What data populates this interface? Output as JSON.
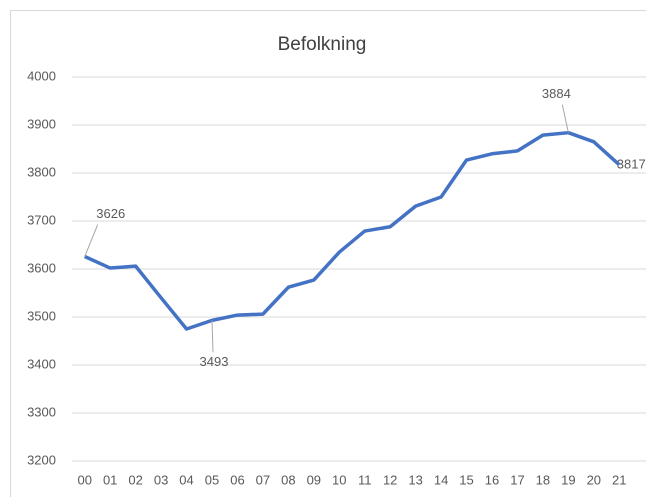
{
  "chart_data": {
    "type": "line",
    "title": "Befolkning",
    "categories": [
      "00",
      "01",
      "02",
      "03",
      "04",
      "05",
      "06",
      "07",
      "08",
      "09",
      "10",
      "11",
      "12",
      "13",
      "14",
      "15",
      "16",
      "17",
      "18",
      "19",
      "20",
      "21"
    ],
    "series": [
      {
        "name": "Befolkning",
        "color": "#4472c4",
        "values": [
          3626,
          3602,
          3606,
          3540,
          3475,
          3493,
          3504,
          3506,
          3562,
          3577,
          3635,
          3679,
          3688,
          3731,
          3750,
          3827,
          3840,
          3846,
          3879,
          3884,
          3865,
          3817
        ],
        "value_labels": [
          "3626",
          null,
          null,
          null,
          null,
          "3493",
          null,
          null,
          null,
          null,
          null,
          null,
          null,
          null,
          null,
          null,
          null,
          null,
          null,
          "3884",
          null,
          "3817"
        ]
      }
    ],
    "ylim": [
      3200,
      4000
    ],
    "yticks": [
      3200,
      3300,
      3400,
      3500,
      3600,
      3700,
      3800,
      3900,
      4000
    ],
    "grid": true
  }
}
